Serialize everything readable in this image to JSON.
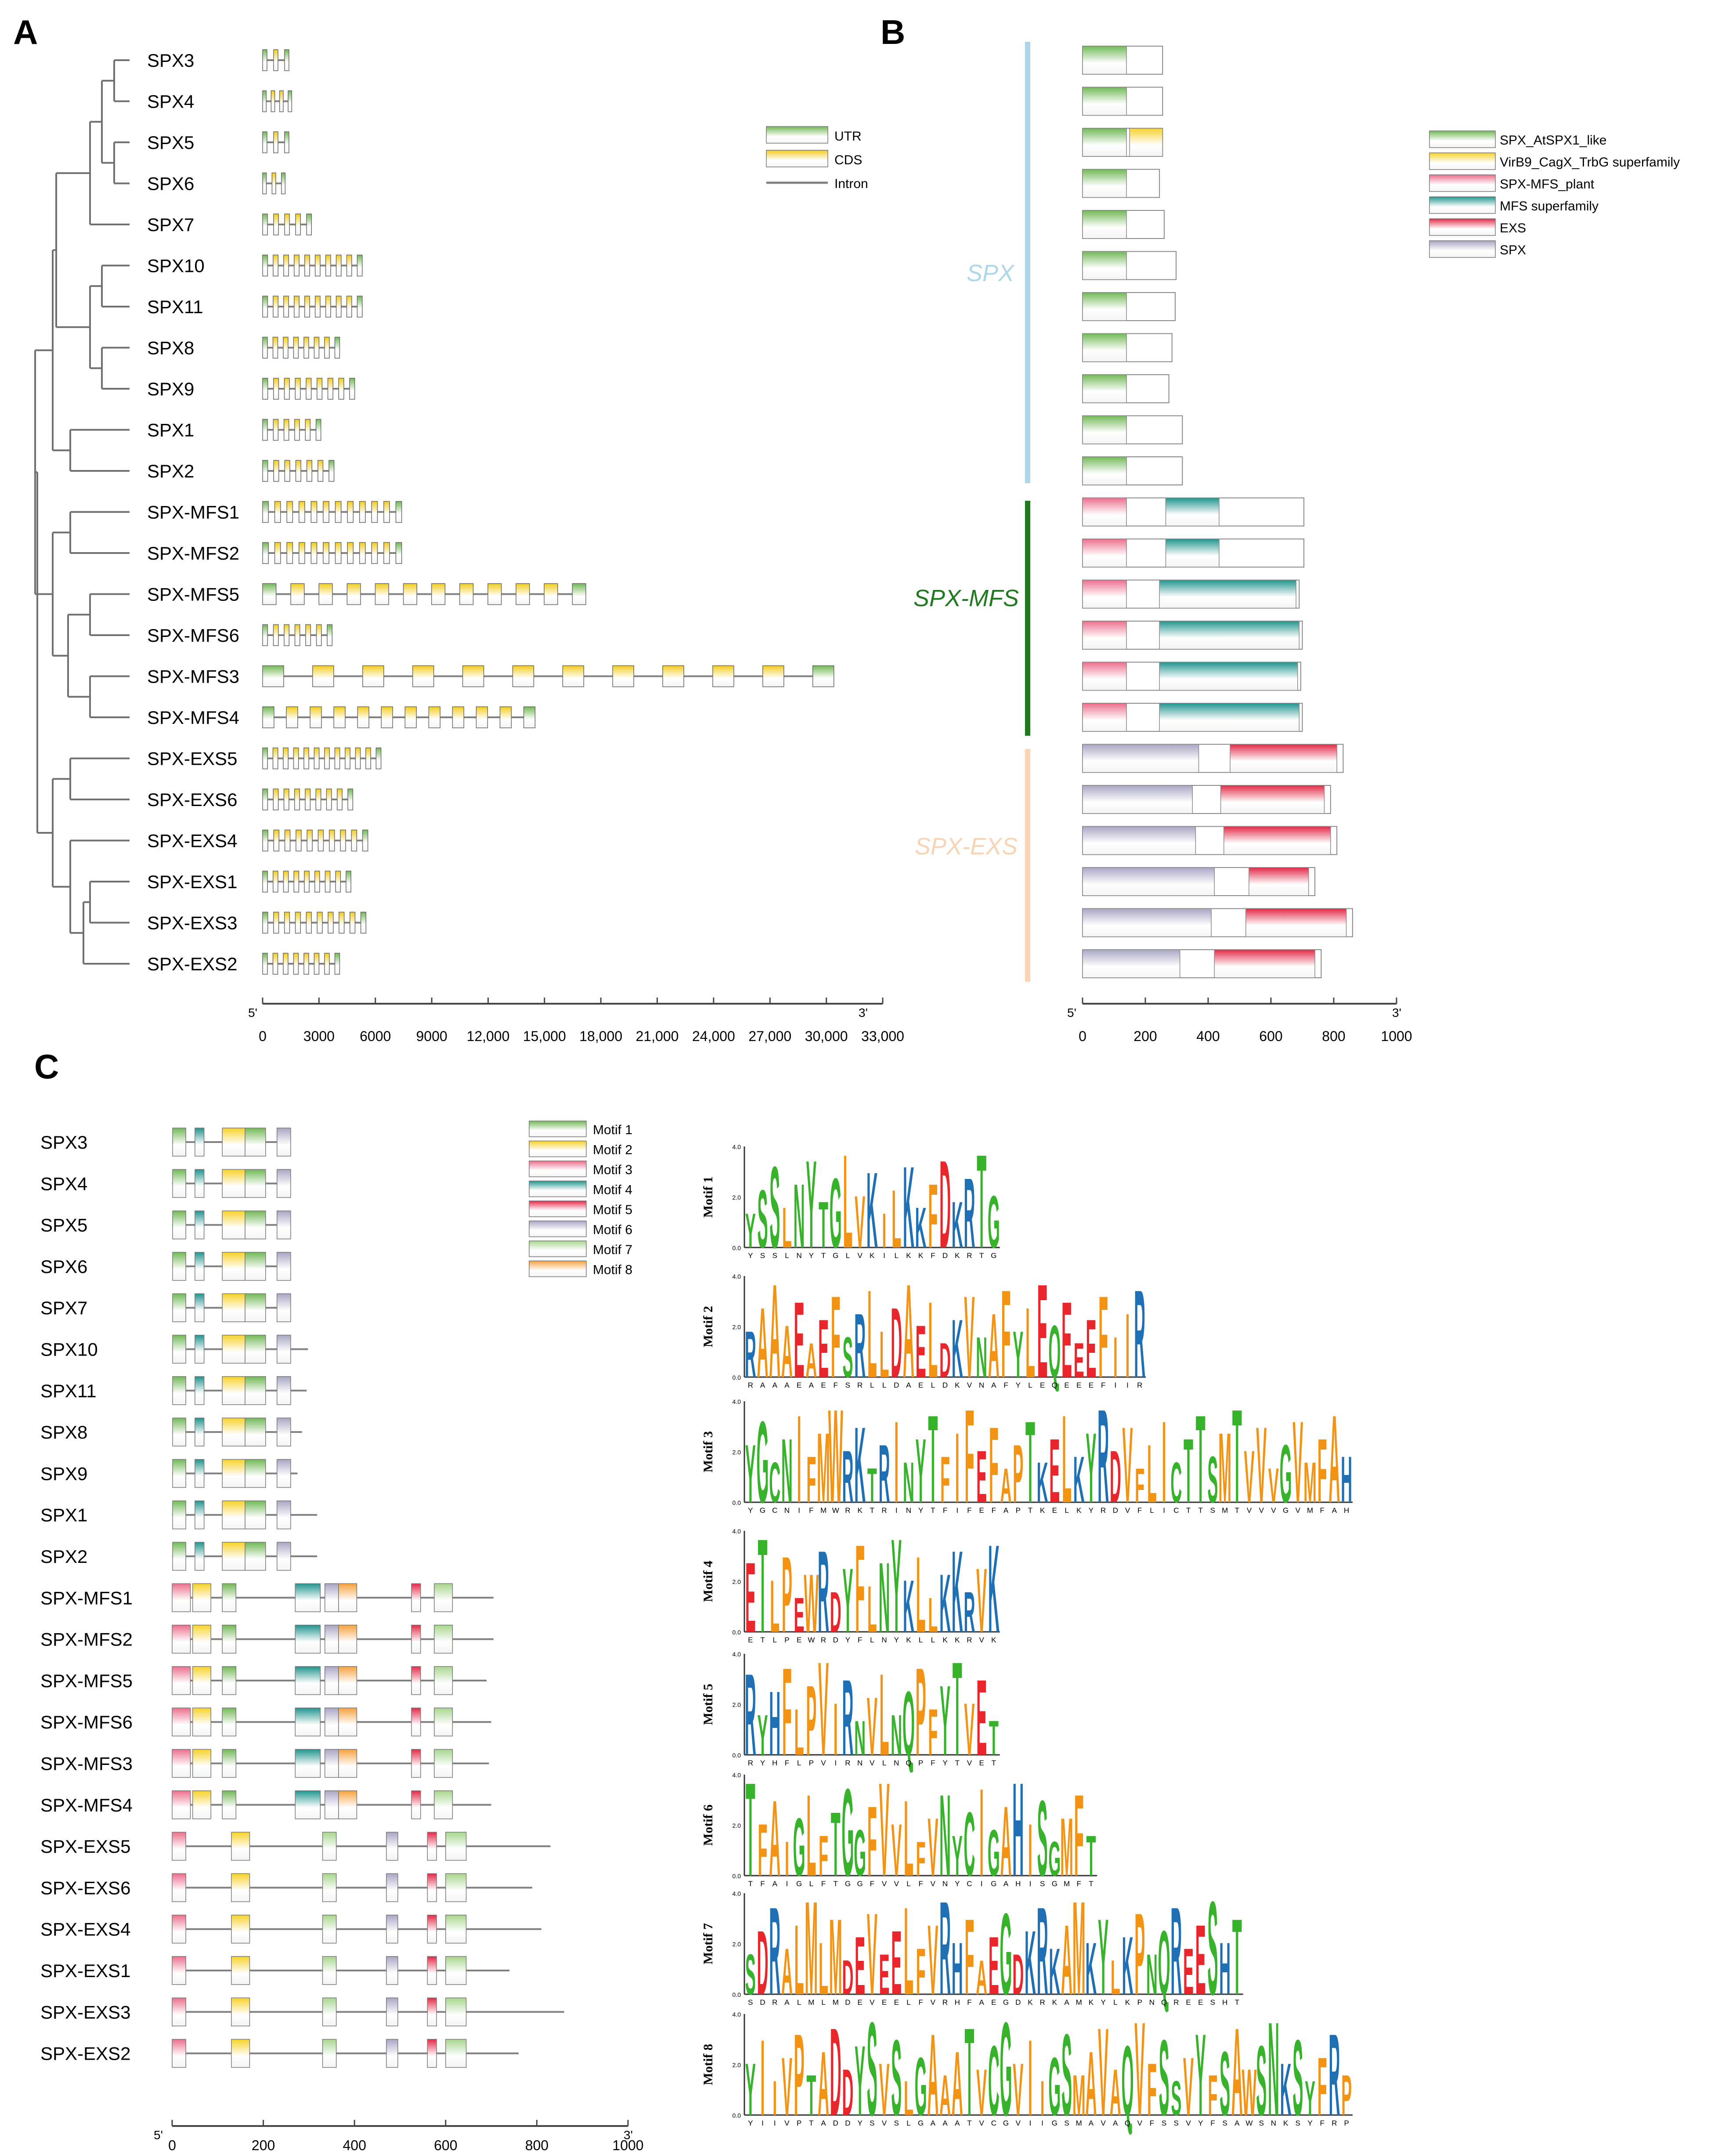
{
  "colors": {
    "utr": "#72b956",
    "cds": "#f2cd1e",
    "intron": "#808080",
    "spx_atspx1": "#72b956",
    "virb9": "#f7d22a",
    "spx_mfs_plant": "#ec6f8c",
    "mfs": "#22958f",
    "exs": "#e22a47",
    "spx": "#a9a6c4",
    "motif1": "#72b956",
    "motif2": "#f7d22a",
    "motif3": "#ec6f8c",
    "motif4": "#22958f",
    "motif5": "#e22a47",
    "motif6": "#a9a6c4",
    "motif7": "#a8d68e",
    "motif8": "#f7a23e",
    "groupSPX": "#aed8ea",
    "groupMFS": "#1f7a1f",
    "groupEXS": "#f8d3b4"
  },
  "panels": {
    "A": "A",
    "B": "B",
    "C": "C"
  },
  "genes": [
    "SPX3",
    "SPX4",
    "SPX5",
    "SPX6",
    "SPX7",
    "SPX10",
    "SPX11",
    "SPX8",
    "SPX9",
    "SPX1",
    "SPX2",
    "SPX-MFS1",
    "SPX-MFS2",
    "SPX-MFS5",
    "SPX-MFS6",
    "SPX-MFS3",
    "SPX-MFS4",
    "SPX-EXS5",
    "SPX-EXS6",
    "SPX-EXS4",
    "SPX-EXS1",
    "SPX-EXS3",
    "SPX-EXS2"
  ],
  "panelA": {
    "legend": [
      "UTR",
      "CDS",
      "Intron"
    ],
    "end5": "5'",
    "end3": "3'",
    "ticks": [
      "0",
      "3000",
      "6000",
      "9000",
      "12,000",
      "15,000",
      "18,000",
      "21,000",
      "24,000",
      "27,000",
      "30,000",
      "33,000"
    ],
    "lengths": [
      1400,
      1550,
      1400,
      1200,
      2600,
      5300,
      5300,
      4100,
      4900,
      3100,
      3800,
      7400,
      7400,
      17200,
      3700,
      30400,
      14500,
      6300,
      4800,
      5600,
      4700,
      5500,
      4100
    ],
    "tickValues": [
      0,
      3000,
      6000,
      9000,
      12000,
      15000,
      18000,
      21000,
      24000,
      27000,
      30000,
      33000
    ]
  },
  "panelB": {
    "legend": [
      "SPX_AtSPX1_like",
      "VirB9_CagX_TrbG superfamily",
      "SPX-MFS_plant",
      "MFS superfamily",
      "EXS",
      "SPX"
    ],
    "groups": [
      "SPX",
      "SPX-MFS",
      "SPX-EXS"
    ],
    "end5": "5'",
    "end3": "3'",
    "ticks": [
      "0",
      "200",
      "400",
      "600",
      "800",
      "1000"
    ],
    "tickValues": [
      0,
      200,
      400,
      600,
      800,
      1000
    ],
    "lengths": [
      255,
      255,
      255,
      245,
      260,
      298,
      295,
      285,
      275,
      318,
      318,
      705,
      705,
      690,
      700,
      695,
      700,
      830,
      790,
      810,
      740,
      860,
      760
    ]
  },
  "panelC": {
    "legend": [
      "Motif 1",
      "Motif 2",
      "Motif 3",
      "Motif 4",
      "Motif 5",
      "Motif 6",
      "Motif 7",
      "Motif 8"
    ],
    "end5": "5'",
    "end3": "3'",
    "ticks": [
      "0",
      "200",
      "400",
      "600",
      "800",
      "1000"
    ],
    "tickValues": [
      0,
      200,
      400,
      600,
      800,
      1000
    ],
    "lengths": [
      255,
      255,
      255,
      245,
      260,
      298,
      295,
      285,
      275,
      318,
      318,
      705,
      705,
      690,
      700,
      695,
      700,
      830,
      790,
      810,
      740,
      860,
      760
    ]
  },
  "logos": [
    {
      "label": "Motif 1",
      "seq": "YSSLNYTGLVKILKKFDKRTG"
    },
    {
      "label": "Motif 2",
      "seq": "RAAAEAEFSRLLDAELDKVNAFYLEQEEEFIIR"
    },
    {
      "label": "Motif 3",
      "seq": "YGCNIFMWRKTRINYTFIFEFAPTKELKYRDVFLICTTSMTVVVGVMFAH"
    },
    {
      "label": "Motif 4",
      "seq": "ETLPEWRDYFLNYKLLKKRVK"
    },
    {
      "label": "Motif 5",
      "seq": "RYHFLPVIRNVLNQPFYTVET"
    },
    {
      "label": "Motif 6",
      "seq": "TFAIGLFTGGFVVLFVNYCIGAHISGMFT"
    },
    {
      "label": "Motif 7",
      "seq": "SDRALMLMDEVEELFVRHFAEGDKRKAMKYLKPNQREESHT"
    },
    {
      "label": "Motif 8",
      "seq": "YIIVPTADDYSVSLGAAATVCGVIIGSMAVAQVFSSVYFSAWSNKSYFRP"
    }
  ],
  "logoAxis": [
    "0.0",
    "2.0",
    "4.0"
  ]
}
